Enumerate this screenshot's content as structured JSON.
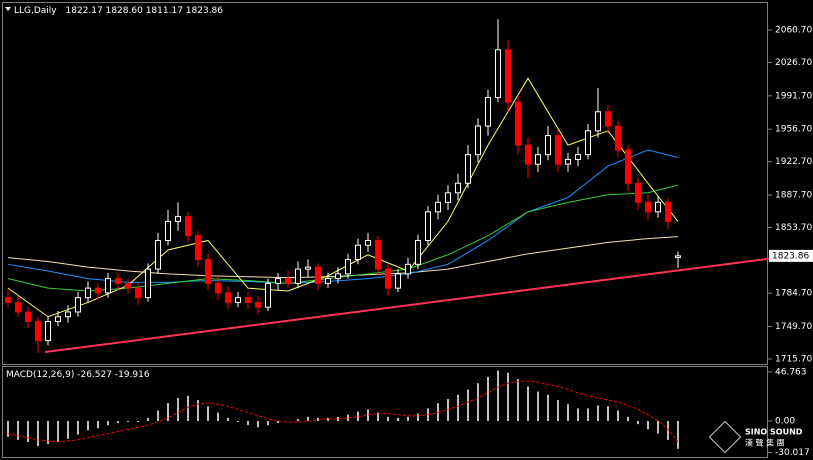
{
  "chart_data": [
    {
      "type": "candlestick",
      "title": "LLG,Daily",
      "ohlc_labels": [
        "1822.17",
        "1828.60",
        "1811.17",
        "1823.86"
      ],
      "ylim": [
        1709.4,
        2090.1
      ],
      "yticks": [
        {
          "value": 2060.7,
          "label": "2060.70"
        },
        {
          "value": 2026.7,
          "label": "2026.70"
        },
        {
          "value": 1991.7,
          "label": "1991.70"
        },
        {
          "value": 1956.7,
          "label": "1956.70"
        },
        {
          "value": 1922.7,
          "label": "1922.70"
        },
        {
          "value": 1887.7,
          "label": "1887.70"
        },
        {
          "value": 1853.7,
          "label": "1853.70"
        },
        {
          "value": 1784.7,
          "label": "1784.70"
        },
        {
          "value": 1749.7,
          "label": "1749.70"
        },
        {
          "value": 1715.7,
          "label": "1715.70"
        }
      ],
      "up_color": "#ffffff",
      "down_color": "#ff0000",
      "candles": [
        [
          1780,
          1788,
          1770,
          1775
        ],
        [
          1775,
          1782,
          1760,
          1765
        ],
        [
          1765,
          1770,
          1748,
          1755
        ],
        [
          1755,
          1760,
          1722,
          1735
        ],
        [
          1735,
          1760,
          1730,
          1755
        ],
        [
          1755,
          1766,
          1750,
          1760
        ],
        [
          1760,
          1772,
          1754,
          1765
        ],
        [
          1765,
          1786,
          1760,
          1780
        ],
        [
          1780,
          1797,
          1775,
          1790
        ],
        [
          1790,
          1795,
          1778,
          1785
        ],
        [
          1785,
          1806,
          1780,
          1800
        ],
        [
          1800,
          1806,
          1788,
          1795
        ],
        [
          1795,
          1800,
          1784,
          1790
        ],
        [
          1790,
          1796,
          1772,
          1780
        ],
        [
          1780,
          1816,
          1776,
          1810
        ],
        [
          1810,
          1848,
          1805,
          1840
        ],
        [
          1840,
          1872,
          1835,
          1860
        ],
        [
          1860,
          1880,
          1850,
          1865
        ],
        [
          1865,
          1870,
          1838,
          1845
        ],
        [
          1845,
          1850,
          1812,
          1820
        ],
        [
          1820,
          1826,
          1788,
          1795
        ],
        [
          1795,
          1802,
          1778,
          1785
        ],
        [
          1785,
          1792,
          1768,
          1775
        ],
        [
          1775,
          1786,
          1770,
          1780
        ],
        [
          1780,
          1786,
          1768,
          1775
        ],
        [
          1775,
          1782,
          1762,
          1770
        ],
        [
          1770,
          1800,
          1766,
          1795
        ],
        [
          1795,
          1806,
          1788,
          1800
        ],
        [
          1800,
          1808,
          1790,
          1795
        ],
        [
          1795,
          1818,
          1790,
          1810
        ],
        [
          1810,
          1820,
          1802,
          1812
        ],
        [
          1812,
          1816,
          1788,
          1795
        ],
        [
          1795,
          1806,
          1790,
          1800
        ],
        [
          1800,
          1812,
          1795,
          1805
        ],
        [
          1805,
          1826,
          1800,
          1820
        ],
        [
          1820,
          1842,
          1815,
          1835
        ],
        [
          1835,
          1848,
          1828,
          1840
        ],
        [
          1840,
          1845,
          1804,
          1810
        ],
        [
          1810,
          1815,
          1782,
          1790
        ],
        [
          1790,
          1810,
          1786,
          1805
        ],
        [
          1805,
          1822,
          1800,
          1815
        ],
        [
          1815,
          1846,
          1810,
          1840
        ],
        [
          1840,
          1876,
          1835,
          1870
        ],
        [
          1870,
          1888,
          1862,
          1880
        ],
        [
          1880,
          1898,
          1872,
          1890
        ],
        [
          1890,
          1910,
          1882,
          1900
        ],
        [
          1900,
          1940,
          1895,
          1930
        ],
        [
          1930,
          1968,
          1922,
          1960
        ],
        [
          1960,
          1998,
          1950,
          1990
        ],
        [
          1990,
          2072,
          1985,
          2040
        ],
        [
          2040,
          2050,
          1975,
          1985
        ],
        [
          1985,
          1992,
          1930,
          1940
        ],
        [
          1940,
          1948,
          1905,
          1920
        ],
        [
          1920,
          1938,
          1912,
          1930
        ],
        [
          1930,
          1960,
          1924,
          1950
        ],
        [
          1950,
          1956,
          1912,
          1920
        ],
        [
          1920,
          1932,
          1912,
          1925
        ],
        [
          1925,
          1938,
          1918,
          1930
        ],
        [
          1930,
          1962,
          1925,
          1955
        ],
        [
          1955,
          2000,
          1948,
          1975
        ],
        [
          1975,
          1982,
          1952,
          1960
        ],
        [
          1960,
          1966,
          1928,
          1935
        ],
        [
          1935,
          1940,
          1892,
          1900
        ],
        [
          1900,
          1906,
          1872,
          1880
        ],
        [
          1880,
          1888,
          1862,
          1870
        ],
        [
          1870,
          1886,
          1864,
          1880
        ],
        [
          1880,
          1885,
          1852,
          1860
        ],
        [
          1822.17,
          1828.6,
          1811.17,
          1823.86
        ]
      ],
      "ma_x": [
        0,
        4,
        8,
        12,
        16,
        20,
        24,
        28,
        32,
        36,
        40,
        44,
        48,
        52,
        56,
        60,
        64,
        67
      ],
      "series": [
        {
          "color": "#f5deb3",
          "values": [
            1822,
            1818,
            1812,
            1808,
            1805,
            1803,
            1802,
            1801,
            1802,
            1804,
            1806,
            1810,
            1818,
            1826,
            1832,
            1838,
            1842,
            1844
          ]
        },
        {
          "color": "#1e90ff",
          "values": [
            1815,
            1808,
            1800,
            1796,
            1796,
            1798,
            1797,
            1795,
            1797,
            1800,
            1805,
            1815,
            1840,
            1870,
            1885,
            1918,
            1935,
            1927
          ]
        },
        {
          "color": "#32cd32",
          "values": [
            1800,
            1790,
            1787,
            1790,
            1795,
            1800,
            1798,
            1795,
            1800,
            1805,
            1810,
            1825,
            1845,
            1870,
            1880,
            1888,
            1890,
            1898
          ]
        },
        {
          "color": "#ffff66",
          "values": [
            1790,
            1760,
            1775,
            1793,
            1830,
            1840,
            1790,
            1787,
            1803,
            1825,
            1808,
            1860,
            1940,
            2010,
            1940,
            1955,
            1900,
            1860
          ]
        }
      ],
      "trendline": {
        "color": "#ff3355",
        "x": [
          3.7,
          80.5
        ],
        "values": [
          1723.0,
          1826.8
        ]
      }
    },
    {
      "type": "macd",
      "title": "MACD(12,26,9)",
      "ylim": [
        -35.3,
        51.5
      ],
      "yticks": [
        46.763,
        {
          "value": 0,
          "label": "0.00"
        },
        -30.017
      ],
      "hist_color": "#c0c0c0",
      "signal_color": "#ff0000",
      "histogram": [
        -15,
        -18,
        -20,
        -24,
        -22,
        -20,
        -17,
        -13,
        -9,
        -7,
        -4,
        -2,
        -1,
        -1,
        3,
        10,
        17,
        22,
        24,
        20,
        14,
        8,
        3,
        -1,
        -4,
        -6,
        -4,
        -2,
        0,
        2,
        4,
        3,
        3,
        4,
        6,
        9,
        11,
        8,
        4,
        3,
        4,
        7,
        12,
        17,
        21,
        25,
        30,
        36,
        42,
        48,
        46,
        40,
        33,
        28,
        25,
        20,
        16,
        12,
        12,
        15,
        14,
        10,
        4,
        -3,
        -8,
        -12,
        -18,
        -26.527
      ],
      "signal": [
        -12,
        -14,
        -16,
        -18,
        -19,
        -20,
        -19,
        -18,
        -16,
        -14,
        -12,
        -10,
        -8,
        -6,
        -4,
        -1,
        3,
        8,
        13,
        16,
        17,
        16,
        14,
        11,
        8,
        5,
        2,
        0,
        -1,
        -1,
        0,
        1,
        2,
        2,
        3,
        4,
        6,
        7,
        7,
        6,
        5,
        5,
        6,
        8,
        11,
        14,
        18,
        22,
        27,
        32,
        36,
        38,
        38,
        37,
        35,
        33,
        30,
        27,
        24,
        22,
        20,
        18,
        15,
        11,
        6,
        0,
        -8,
        -19.916
      ]
    }
  ],
  "logo": {
    "name": "SINO SOUND",
    "chinese": "漢 聲 集 團"
  }
}
